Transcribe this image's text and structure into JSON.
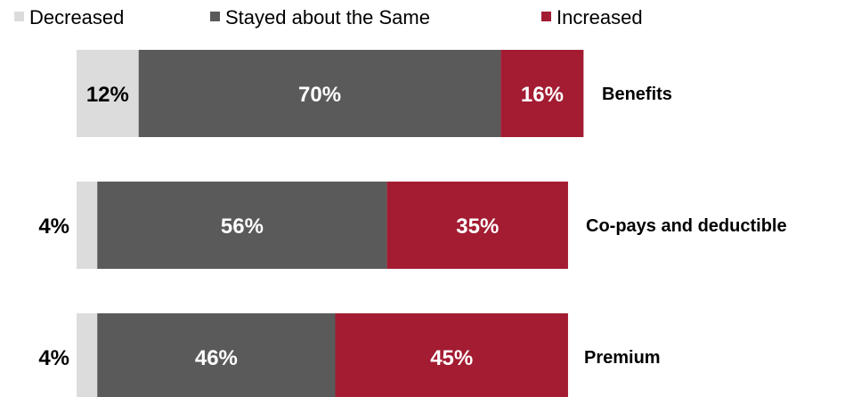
{
  "chart_data": {
    "type": "bar",
    "orientation": "horizontal",
    "stacked": true,
    "legend_position": "top",
    "grid": false,
    "categories": [
      "Benefits",
      "Co-pays and deductible",
      "Premium"
    ],
    "series": [
      {
        "name": "Decreased",
        "color": "#dcdcdc",
        "values": [
          12,
          4,
          4
        ],
        "labels": [
          "12%",
          "4%",
          "4%"
        ]
      },
      {
        "name": "Stayed about the Same",
        "color": "#5a5a5a",
        "values": [
          70,
          56,
          46
        ],
        "labels": [
          "70%",
          "56%",
          "46%"
        ]
      },
      {
        "name": "Increased",
        "color": "#a31c32",
        "values": [
          16,
          35,
          45
        ],
        "labels": [
          "16%",
          "35%",
          "45%"
        ]
      }
    ],
    "title": "",
    "xlabel": "",
    "ylabel": "",
    "xlim": [
      0,
      100
    ]
  }
}
